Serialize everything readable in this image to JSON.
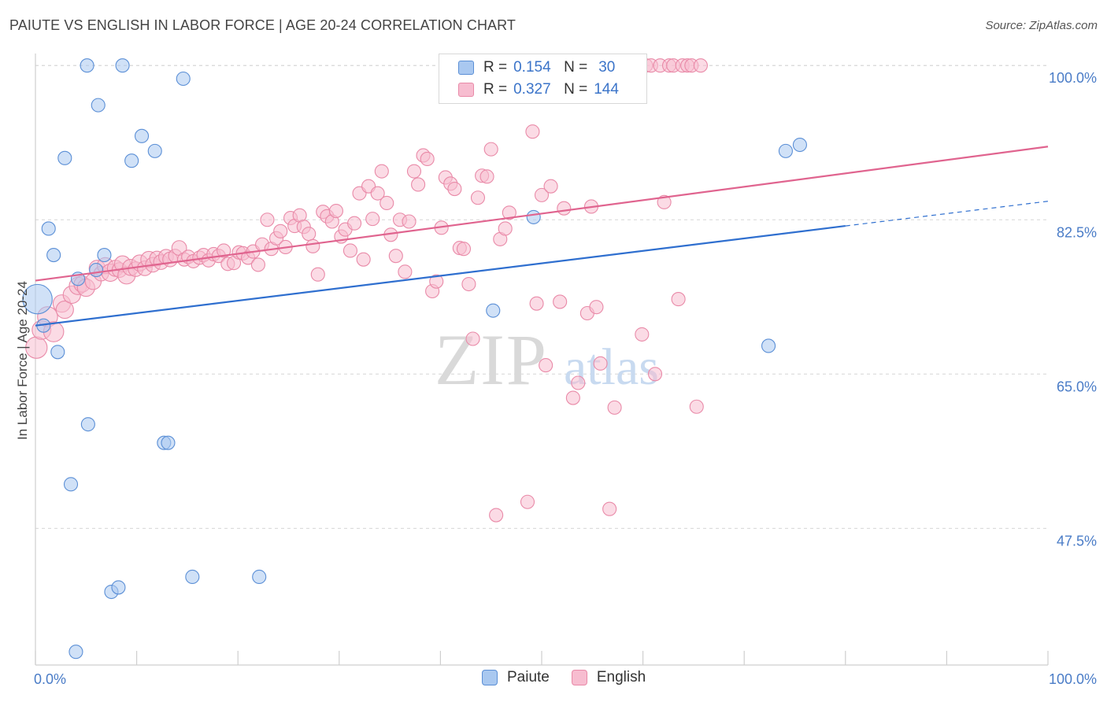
{
  "header": {
    "title": "PAIUTE VS ENGLISH IN LABOR FORCE | AGE 20-24 CORRELATION CHART",
    "source": "Source: ZipAtlas.com"
  },
  "watermark": {
    "zip": "ZIP",
    "atlas": "atlas"
  },
  "legend": {
    "paiute": {
      "r_label": "R =",
      "r_value": "0.154",
      "n_label": "N =",
      "n_value": "30"
    },
    "english": {
      "r_label": "R =",
      "r_value": "0.327",
      "n_label": "N =",
      "n_value": "144"
    }
  },
  "bottom_legend": {
    "paiute": "Paiute",
    "english": "English"
  },
  "colors": {
    "paiute_fill": "#a9c8f0",
    "paiute_stroke": "#5b8fd6",
    "paiute_line": "#2f6fcf",
    "english_fill": "#f7bdd0",
    "english_stroke": "#e98aa8",
    "english_line": "#e0648f",
    "tick_text": "#4a7cc7",
    "grid": "#d6d6d6"
  },
  "chart_data": {
    "type": "scatter",
    "title": "PAIUTE VS ENGLISH IN LABOR FORCE | AGE 20-24 CORRELATION CHART",
    "xlabel": "",
    "ylabel": "In Labor Force | Age 20-24",
    "x_tick_labels": [
      "0.0%",
      "100.0%"
    ],
    "y_tick_labels": [
      "100.0%",
      "82.5%",
      "65.0%",
      "47.5%"
    ],
    "y_ticks": [
      100.0,
      82.5,
      65.0,
      47.5
    ],
    "xlim": [
      0,
      100
    ],
    "ylim": [
      32,
      101
    ],
    "grid": true,
    "legend_position": "top-center",
    "series": [
      {
        "name": "Paiute",
        "r": 0.154,
        "n": 30,
        "trend": {
          "x0": 0,
          "y0": 70.5,
          "x1": 80,
          "y1": 81.8,
          "dashed_to_x": 100,
          "dashed_to_y": 84.6
        },
        "points": [
          [
            0.2,
            73.5,
            2.2
          ],
          [
            0.8,
            70.5,
            1
          ],
          [
            1.3,
            81.5,
            1
          ],
          [
            1.8,
            78.5,
            1
          ],
          [
            2.2,
            67.5,
            1
          ],
          [
            2.9,
            89.5,
            1
          ],
          [
            3.5,
            52.5,
            1
          ],
          [
            4.0,
            33.5,
            1
          ],
          [
            4.2,
            75.8,
            1
          ],
          [
            5.1,
            100.0,
            1
          ],
          [
            5.2,
            59.3,
            1
          ],
          [
            6.0,
            76.8,
            1
          ],
          [
            6.2,
            95.5,
            1
          ],
          [
            6.8,
            78.5,
            1
          ],
          [
            7.5,
            40.3,
            1
          ],
          [
            8.2,
            40.8,
            1
          ],
          [
            8.6,
            100.0,
            1
          ],
          [
            9.5,
            89.2,
            1
          ],
          [
            10.5,
            92.0,
            1
          ],
          [
            11.8,
            90.3,
            1
          ],
          [
            12.7,
            57.2,
            1
          ],
          [
            13.1,
            57.2,
            1
          ],
          [
            14.6,
            98.5,
            1
          ],
          [
            15.5,
            42.0,
            1
          ],
          [
            22.1,
            42.0,
            1
          ],
          [
            45.2,
            72.2,
            1
          ],
          [
            49.2,
            82.8,
            1
          ],
          [
            74.1,
            90.3,
            1
          ],
          [
            75.5,
            91.0,
            1
          ],
          [
            72.4,
            68.2,
            1
          ]
        ]
      },
      {
        "name": "English",
        "r": 0.327,
        "n": 144,
        "trend": {
          "x0": 0,
          "y0": 75.6,
          "x1": 100,
          "y1": 90.8
        },
        "points": [
          [
            0.1,
            68.0,
            1.6
          ],
          [
            0.6,
            70.0,
            1.4
          ],
          [
            1.2,
            71.5,
            1.5
          ],
          [
            1.8,
            69.8,
            1.5
          ],
          [
            2.6,
            73.0,
            1.3
          ],
          [
            2.9,
            72.3,
            1.3
          ],
          [
            3.6,
            74.0,
            1.3
          ],
          [
            4.2,
            75.0,
            1.3
          ],
          [
            4.6,
            75.2,
            1.2
          ],
          [
            5.0,
            74.8,
            1.3
          ],
          [
            5.7,
            75.5,
            1.2
          ],
          [
            6.1,
            77.0,
            1.2
          ],
          [
            6.5,
            76.4,
            1.1
          ],
          [
            6.9,
            77.3,
            1.2
          ],
          [
            7.4,
            76.5,
            1.3
          ],
          [
            7.9,
            77.0,
            1.2
          ],
          [
            8.3,
            76.8,
            1.1
          ],
          [
            8.6,
            77.5,
            1.2
          ],
          [
            9.0,
            76.2,
            1.3
          ],
          [
            9.4,
            77.1,
            1.2
          ],
          [
            9.9,
            76.9,
            1.1
          ],
          [
            10.3,
            77.6,
            1.2
          ],
          [
            10.8,
            77.0,
            1.1
          ],
          [
            11.2,
            78.0,
            1.2
          ],
          [
            11.6,
            77.4,
            1.1
          ],
          [
            12.0,
            78.1,
            1.1
          ],
          [
            12.4,
            77.7,
            1.1
          ],
          [
            12.9,
            78.3,
            1.1
          ],
          [
            13.3,
            78.0,
            1.1
          ],
          [
            13.8,
            78.4,
            1
          ],
          [
            14.2,
            79.3,
            1.1
          ],
          [
            14.7,
            78.0,
            1
          ],
          [
            15.1,
            78.3,
            1
          ],
          [
            15.6,
            77.8,
            1
          ],
          [
            16.2,
            78.2,
            1
          ],
          [
            16.6,
            78.5,
            1
          ],
          [
            17.1,
            77.9,
            1
          ],
          [
            17.6,
            78.6,
            1
          ],
          [
            18.1,
            78.4,
            1
          ],
          [
            18.6,
            79.0,
            1
          ],
          [
            19.0,
            77.5,
            1
          ],
          [
            19.6,
            77.6,
            1
          ],
          [
            20.1,
            78.8,
            1
          ],
          [
            20.5,
            78.7,
            1
          ],
          [
            21.0,
            78.2,
            1
          ],
          [
            21.5,
            78.9,
            1
          ],
          [
            22.0,
            77.4,
            1
          ],
          [
            22.4,
            79.7,
            1
          ],
          [
            22.9,
            82.5,
            1
          ],
          [
            23.3,
            79.2,
            1
          ],
          [
            23.8,
            80.4,
            1
          ],
          [
            24.2,
            81.2,
            1
          ],
          [
            24.7,
            79.4,
            1
          ],
          [
            25.2,
            82.7,
            1
          ],
          [
            25.6,
            81.8,
            1
          ],
          [
            26.1,
            83.0,
            1
          ],
          [
            26.5,
            81.7,
            1
          ],
          [
            27.0,
            80.9,
            1
          ],
          [
            27.4,
            79.5,
            1
          ],
          [
            27.9,
            76.3,
            1
          ],
          [
            28.4,
            83.4,
            1
          ],
          [
            28.8,
            82.9,
            1
          ],
          [
            29.3,
            82.3,
            1
          ],
          [
            29.7,
            83.5,
            1
          ],
          [
            30.2,
            80.6,
            1
          ],
          [
            30.6,
            81.4,
            1
          ],
          [
            31.1,
            79.0,
            1
          ],
          [
            31.5,
            82.1,
            1
          ],
          [
            32.0,
            85.5,
            1
          ],
          [
            32.4,
            78.0,
            1
          ],
          [
            32.9,
            86.3,
            1
          ],
          [
            33.3,
            82.6,
            1
          ],
          [
            33.8,
            85.5,
            1
          ],
          [
            34.2,
            88.0,
            1
          ],
          [
            34.7,
            84.4,
            1
          ],
          [
            35.1,
            80.8,
            1
          ],
          [
            35.6,
            78.4,
            1
          ],
          [
            36.0,
            82.5,
            1
          ],
          [
            36.5,
            76.6,
            1
          ],
          [
            36.9,
            82.3,
            1
          ],
          [
            37.4,
            88.0,
            1
          ],
          [
            37.8,
            86.5,
            1
          ],
          [
            38.3,
            89.8,
            1
          ],
          [
            38.7,
            89.4,
            1
          ],
          [
            39.2,
            74.4,
            1
          ],
          [
            39.6,
            75.5,
            1
          ],
          [
            40.1,
            81.6,
            1
          ],
          [
            40.5,
            87.3,
            1
          ],
          [
            41.0,
            86.6,
            1
          ],
          [
            41.4,
            86.0,
            1
          ],
          [
            41.9,
            79.3,
            1
          ],
          [
            42.3,
            79.2,
            1
          ],
          [
            42.8,
            75.2,
            1
          ],
          [
            43.2,
            69.0,
            1
          ],
          [
            43.7,
            85.0,
            1
          ],
          [
            44.1,
            87.5,
            1
          ],
          [
            44.6,
            87.4,
            1
          ],
          [
            45.0,
            90.5,
            1
          ],
          [
            45.5,
            49.0,
            1
          ],
          [
            45.9,
            80.3,
            1
          ],
          [
            46.4,
            81.5,
            1
          ],
          [
            46.8,
            83.3,
            1
          ],
          [
            47.3,
            100.0,
            1
          ],
          [
            47.7,
            100.0,
            1
          ],
          [
            48.2,
            100.0,
            1
          ],
          [
            48.6,
            50.5,
            1
          ],
          [
            49.1,
            92.5,
            1
          ],
          [
            49.5,
            73.0,
            1
          ],
          [
            50.0,
            85.3,
            1
          ],
          [
            50.4,
            66.0,
            1
          ],
          [
            50.9,
            86.3,
            1
          ],
          [
            51.3,
            100.0,
            1
          ],
          [
            51.8,
            73.2,
            1
          ],
          [
            52.2,
            83.8,
            1
          ],
          [
            52.7,
            100.0,
            1
          ],
          [
            53.1,
            62.3,
            1
          ],
          [
            53.6,
            64.0,
            1
          ],
          [
            54.0,
            100.0,
            1
          ],
          [
            54.5,
            71.9,
            1
          ],
          [
            54.9,
            84.0,
            1
          ],
          [
            55.4,
            72.6,
            1
          ],
          [
            55.8,
            66.2,
            1
          ],
          [
            56.3,
            100.0,
            1
          ],
          [
            56.7,
            49.7,
            1
          ],
          [
            57.2,
            61.2,
            1
          ],
          [
            57.6,
            100.0,
            1
          ],
          [
            58.1,
            100.0,
            1
          ],
          [
            58.5,
            100.0,
            1
          ],
          [
            59.0,
            100.0,
            1
          ],
          [
            59.4,
            100.0,
            1
          ],
          [
            59.9,
            69.5,
            1
          ],
          [
            60.3,
            100.0,
            1
          ],
          [
            60.8,
            100.0,
            1
          ],
          [
            61.2,
            65.0,
            1
          ],
          [
            61.7,
            100.0,
            1
          ],
          [
            62.1,
            84.5,
            1
          ],
          [
            62.6,
            100.0,
            1
          ],
          [
            63.0,
            100.0,
            1
          ],
          [
            63.5,
            73.5,
            1
          ],
          [
            63.9,
            100.0,
            1
          ],
          [
            64.4,
            100.0,
            1
          ],
          [
            64.8,
            100.0,
            1
          ],
          [
            65.3,
            61.3,
            1
          ],
          [
            65.7,
            100.0,
            1
          ]
        ]
      }
    ]
  }
}
